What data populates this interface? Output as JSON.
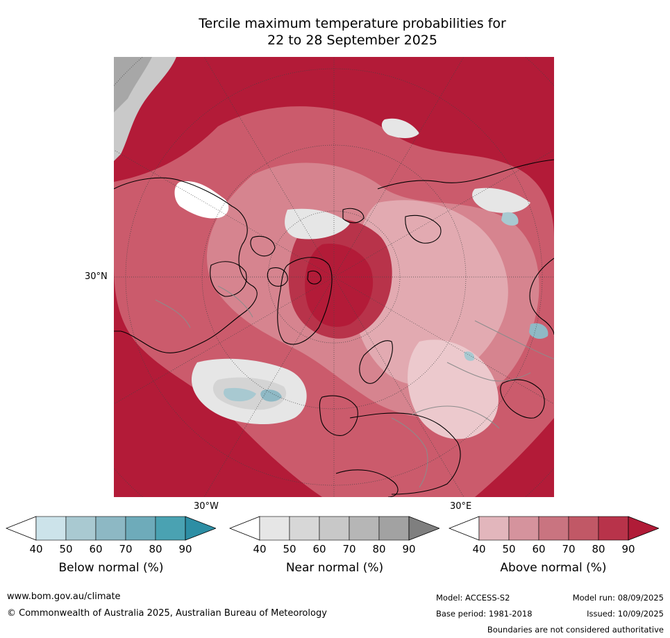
{
  "title": {
    "line1": "Tercile maximum temperature probabilities for",
    "line2": "22 to 28 September 2025"
  },
  "map": {
    "lat_label": "30°N",
    "lon_labels": [
      "30°W",
      "30°E"
    ],
    "colors": {
      "above_90": "#b31b38",
      "above_80": "#c0344e",
      "above_70": "#cb5b6c",
      "above_60": "#d6848f",
      "above_50": "#e2aab1",
      "above_40": "#ecc9cd",
      "near_40": "#e6e6e6",
      "near_50": "#d4d4d4",
      "below_50": "#a8c9d1",
      "below_60": "#8fb9c5",
      "land_outline": "#000000",
      "border": "#8c8c8c"
    }
  },
  "colorbars": [
    {
      "name": "below",
      "label": "Below normal (%)",
      "ticks": [
        "40",
        "50",
        "60",
        "70",
        "80",
        "90"
      ],
      "colors": [
        "#ffffff",
        "#cce3ea",
        "#a9c9d1",
        "#8db8c4",
        "#6eabba",
        "#4aa2b2",
        "#2d8ea4"
      ]
    },
    {
      "name": "near",
      "label": "Near normal (%)",
      "ticks": [
        "40",
        "50",
        "60",
        "70",
        "80",
        "90"
      ],
      "colors": [
        "#ffffff",
        "#e6e6e6",
        "#d7d7d7",
        "#c8c8c8",
        "#b6b6b6",
        "#a2a2a2",
        "#7f7f7f"
      ]
    },
    {
      "name": "above",
      "label": "Above normal (%)",
      "ticks": [
        "40",
        "50",
        "60",
        "70",
        "80",
        "90"
      ],
      "colors": [
        "#ffffff",
        "#e2b6bc",
        "#d5939d",
        "#c97480",
        "#c15866",
        "#b8334a",
        "#b01b37"
      ]
    }
  ],
  "footer": {
    "website": "www.bom.gov.au/climate",
    "copyright": "© Commonwealth of Australia 2025, Australian Bureau of Meteorology",
    "model": "Model: ACCESS-S2",
    "base_period": "Base period: 1981-2018",
    "model_run": "Model run: 08/09/2025",
    "issued": "Issued: 10/09/2025",
    "disclaimer": "Boundaries are not considered authoritative"
  }
}
